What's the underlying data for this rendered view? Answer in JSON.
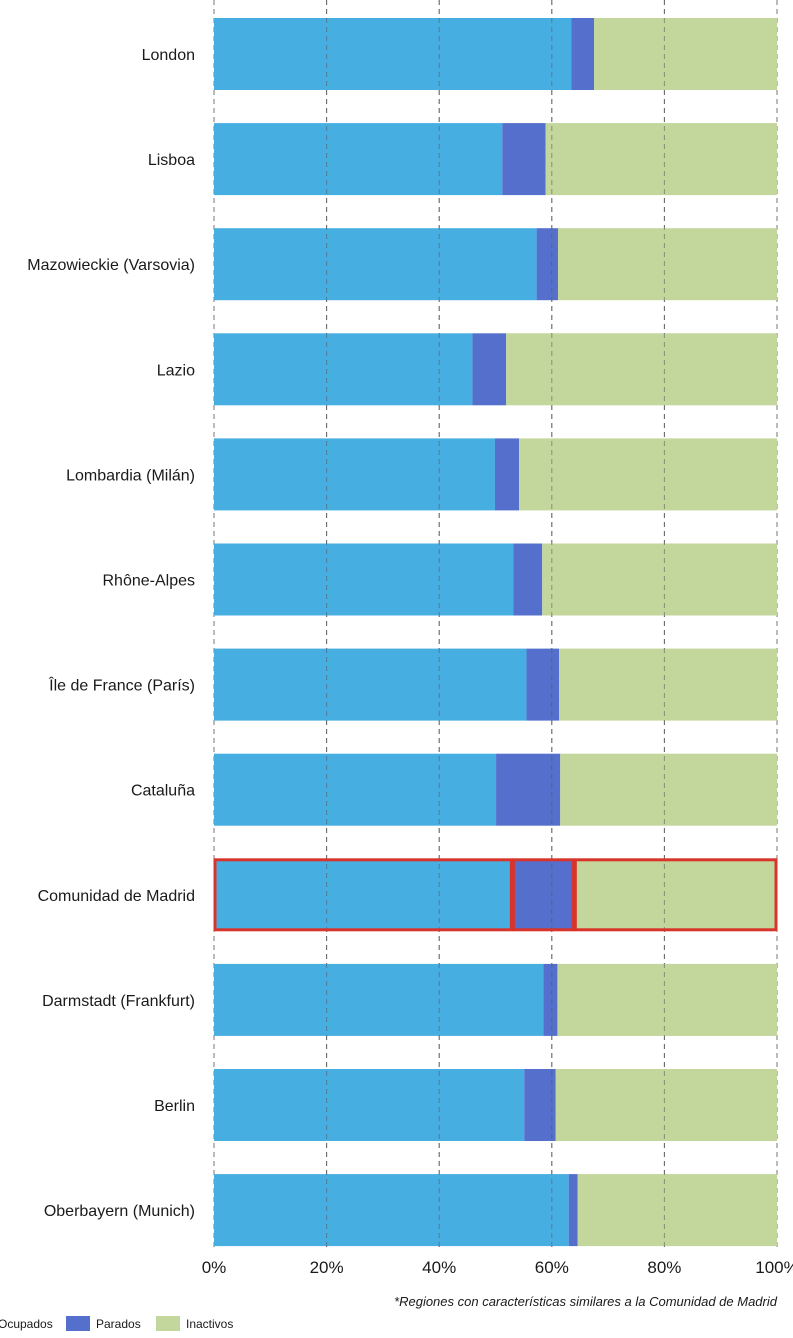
{
  "chart_data": {
    "type": "bar",
    "orientation": "horizontal",
    "stacked": true,
    "title": "",
    "xlabel": "",
    "ylabel": "",
    "xlim": [
      0,
      100
    ],
    "x_ticks": [
      "0%",
      "20%",
      "40%",
      "60%",
      "80%",
      "100%"
    ],
    "grid": "vertical dashed",
    "categories": [
      "London",
      "Lisboa",
      "Mazowieckie (Varsovia)",
      "Lazio",
      "Lombardia (Milán)",
      "Rhône-Alpes",
      "Île de France (París)",
      "Cataluña",
      "Comunidad de Madrid",
      "Darmstadt (Frankfurt)",
      "Berlin",
      "Oberbayern (Munich)"
    ],
    "highlighted_category": "Comunidad de Madrid",
    "highlight_color": "#d9342b",
    "series": [
      {
        "name": "Ocupados",
        "color": "#47aee2",
        "values": [
          63.5,
          51.2,
          57.3,
          45.9,
          49.9,
          53.2,
          55.5,
          50.1,
          53.0,
          58.5,
          55.1,
          63.0
        ]
      },
      {
        "name": "Parados",
        "color": "#5470cc",
        "values": [
          4.0,
          7.7,
          3.8,
          6.0,
          4.3,
          5.1,
          5.8,
          11.4,
          11.0,
          2.5,
          5.6,
          1.6
        ]
      },
      {
        "name": "Inactivos",
        "color": "#c3d69b",
        "values": [
          32.5,
          41.1,
          38.9,
          48.1,
          45.8,
          41.7,
          38.7,
          38.5,
          36.0,
          39.0,
          39.3,
          35.4
        ]
      }
    ],
    "legend": {
      "placement": "bottom-left",
      "items": [
        "Ocupados",
        "Parados",
        "Inactivos"
      ]
    },
    "footnote": "*Regiones con características similares a la Comunidad de Madrid"
  }
}
